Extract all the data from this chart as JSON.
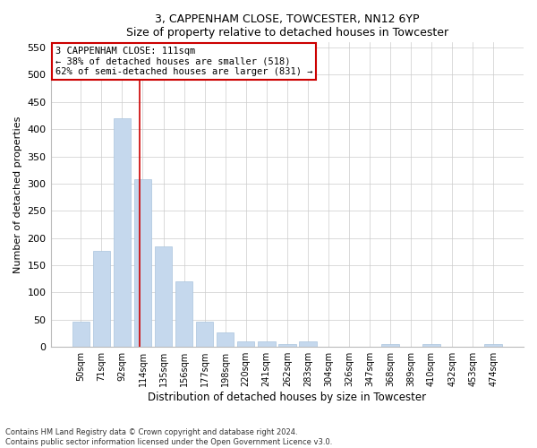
{
  "title1": "3, CAPPENHAM CLOSE, TOWCESTER, NN12 6YP",
  "title2": "Size of property relative to detached houses in Towcester",
  "xlabel": "Distribution of detached houses by size in Towcester",
  "ylabel": "Number of detached properties",
  "categories": [
    "50sqm",
    "71sqm",
    "92sqm",
    "114sqm",
    "135sqm",
    "156sqm",
    "177sqm",
    "198sqm",
    "220sqm",
    "241sqm",
    "262sqm",
    "283sqm",
    "304sqm",
    "326sqm",
    "347sqm",
    "368sqm",
    "389sqm",
    "410sqm",
    "432sqm",
    "453sqm",
    "474sqm"
  ],
  "values": [
    46,
    177,
    420,
    308,
    184,
    120,
    46,
    26,
    11,
    10,
    6,
    10,
    0,
    0,
    0,
    5,
    0,
    5,
    0,
    0,
    5
  ],
  "bar_color": "#c5d8ed",
  "bar_edge_color": "#aac4de",
  "pct_smaller": "38% of detached houses are smaller (518)",
  "pct_larger": "62% of semi-detached houses are larger (831)",
  "marker_line_color": "#cc0000",
  "annotation_box_edge": "#cc0000",
  "ylim": [
    0,
    560
  ],
  "yticks": [
    0,
    50,
    100,
    150,
    200,
    250,
    300,
    350,
    400,
    450,
    500,
    550
  ],
  "footer1": "Contains HM Land Registry data © Crown copyright and database right 2024.",
  "footer2": "Contains public sector information licensed under the Open Government Licence v3.0.",
  "bg_color": "#ffffff",
  "axes_bg_color": "#ffffff"
}
